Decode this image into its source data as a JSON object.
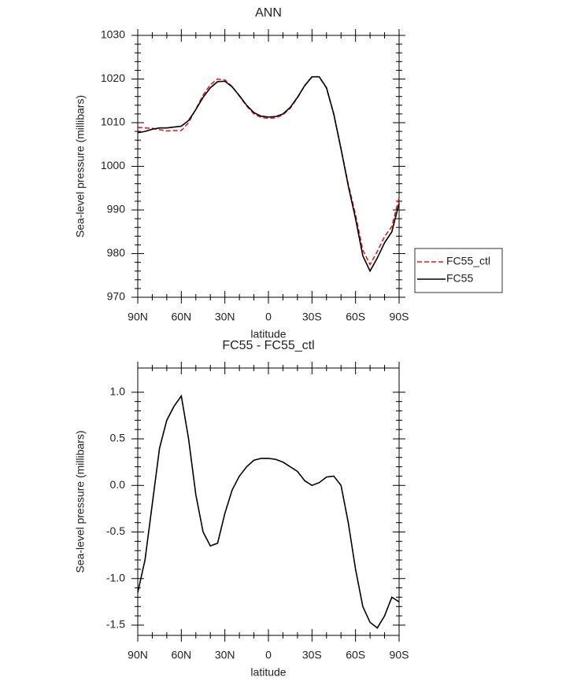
{
  "chart_data": [
    {
      "type": "line",
      "title": "ANN",
      "xlabel": "latitude",
      "ylabel": "Sea-level pressure (millibars)",
      "x": [
        90,
        85,
        80,
        75,
        70,
        65,
        60,
        55,
        50,
        45,
        40,
        35,
        30,
        25,
        20,
        15,
        10,
        5,
        0,
        -5,
        -10,
        -15,
        -20,
        -25,
        -30,
        -35,
        -40,
        -45,
        -50,
        -55,
        -60,
        -65,
        -70,
        -75,
        -80,
        -85,
        -90
      ],
      "series": [
        {
          "name": "FC55_ctl",
          "color": "#e41a1c",
          "style": "dashed",
          "values": [
            1008.9,
            1008.8,
            1008.7,
            1008.4,
            1008.1,
            1008.2,
            1008.2,
            1010.0,
            1013.1,
            1016.3,
            1018.7,
            1020.0,
            1019.8,
            1018.3,
            1016.1,
            1013.8,
            1012.0,
            1011.2,
            1011.0,
            1011.1,
            1011.8,
            1013.3,
            1015.7,
            1018.5,
            1020.5,
            1020.5,
            1017.9,
            1011.9,
            1004.0,
            995.9,
            988.9,
            980.8,
            977.5,
            980.5,
            983.9,
            986.2,
            992.8
          ]
        },
        {
          "name": "FC55",
          "color": "#000000",
          "style": "solid",
          "values": [
            1007.7,
            1008.0,
            1008.5,
            1008.8,
            1008.8,
            1009.0,
            1009.2,
            1010.5,
            1013.0,
            1015.8,
            1018.0,
            1019.4,
            1019.5,
            1018.2,
            1016.2,
            1014.0,
            1012.3,
            1011.5,
            1011.3,
            1011.4,
            1012.0,
            1013.5,
            1015.8,
            1018.5,
            1020.5,
            1020.5,
            1018.0,
            1012.0,
            1004.0,
            995.5,
            988.0,
            979.5,
            976.0,
            979.0,
            982.5,
            985.0,
            991.5
          ]
        }
      ],
      "xlim": [
        90,
        -90
      ],
      "xticks": [
        {
          "value": 90,
          "label": "90N"
        },
        {
          "value": 60,
          "label": "60N"
        },
        {
          "value": 30,
          "label": "30N"
        },
        0,
        {
          "value": -30,
          "label": "30S"
        },
        {
          "value": -60,
          "label": "60S"
        },
        {
          "value": -90,
          "label": "90S"
        }
      ],
      "ylim": [
        970,
        1030
      ],
      "yticks": [
        970,
        980,
        990,
        1000,
        1010,
        1020,
        1030
      ],
      "legend": "right"
    },
    {
      "type": "line",
      "title": "FC55 - FC55_ctl",
      "xlabel": "latitude",
      "ylabel": "Sea-level pressure (millibars)",
      "x": [
        90,
        85,
        80,
        75,
        70,
        65,
        60,
        55,
        50,
        45,
        40,
        35,
        30,
        25,
        20,
        15,
        10,
        5,
        0,
        -5,
        -10,
        -15,
        -20,
        -25,
        -30,
        -35,
        -40,
        -45,
        -50,
        -55,
        -60,
        -65,
        -70,
        -75,
        -80,
        -85,
        -90
      ],
      "color": "#000000",
      "values": [
        -1.15,
        -0.8,
        -0.2,
        0.4,
        0.7,
        0.85,
        0.96,
        0.5,
        -0.1,
        -0.5,
        -0.65,
        -0.62,
        -0.3,
        -0.05,
        0.1,
        0.2,
        0.27,
        0.29,
        0.29,
        0.28,
        0.25,
        0.2,
        0.15,
        0.05,
        0.0,
        0.03,
        0.09,
        0.1,
        0.0,
        -0.4,
        -0.9,
        -1.3,
        -1.47,
        -1.53,
        -1.4,
        -1.2,
        -1.25
      ],
      "xlim": [
        90,
        -90
      ],
      "xticks": [
        {
          "value": 90,
          "label": "90N"
        },
        {
          "value": 60,
          "label": "60N"
        },
        {
          "value": 30,
          "label": "30N"
        },
        0,
        {
          "value": -30,
          "label": "30S"
        },
        {
          "value": -60,
          "label": "60S"
        },
        {
          "value": -90,
          "label": "90S"
        }
      ],
      "ylim": [
        -1.61,
        1.26
      ],
      "yticks": [
        {
          "value": -1.5,
          "label": "-1.5"
        },
        {
          "value": -1.0,
          "label": "-1.0"
        },
        -0.5,
        {
          "value": 0.0,
          "label": "0.0"
        },
        0.5,
        {
          "value": 1.0,
          "label": "1.0"
        }
      ]
    }
  ]
}
